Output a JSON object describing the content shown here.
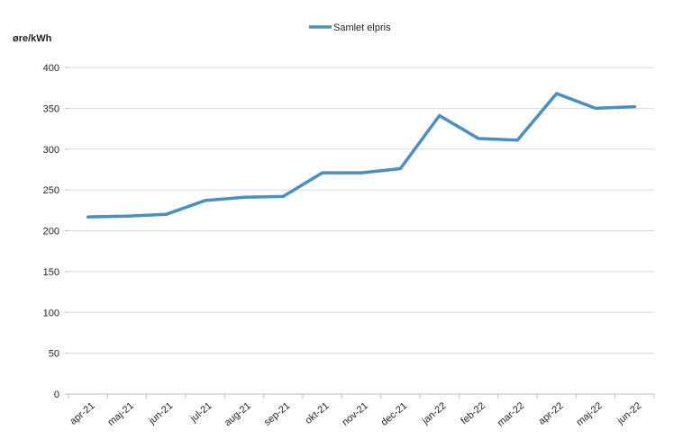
{
  "chart_data": {
    "type": "line",
    "title": "",
    "xlabel": "",
    "ylabel": "øre/kWh",
    "ylim": [
      0,
      400
    ],
    "yticks": [
      0,
      50,
      100,
      150,
      200,
      250,
      300,
      350,
      400
    ],
    "grid": true,
    "legend_position": "top-center",
    "categories": [
      "apr-21",
      "maj-21",
      "jun-21",
      "jul-21",
      "aug-21",
      "sep-21",
      "okt-21",
      "nov-21",
      "dec-21",
      "jan-22",
      "feb-22",
      "mar-22",
      "apr-22",
      "maj-22",
      "jun-22"
    ],
    "series": [
      {
        "name": "Samlet elpris",
        "color": "#4a8fc0",
        "values": [
          217,
          218,
          220,
          237,
          241,
          242,
          271,
          271,
          276,
          341,
          313,
          311,
          368,
          350,
          352
        ]
      }
    ]
  }
}
